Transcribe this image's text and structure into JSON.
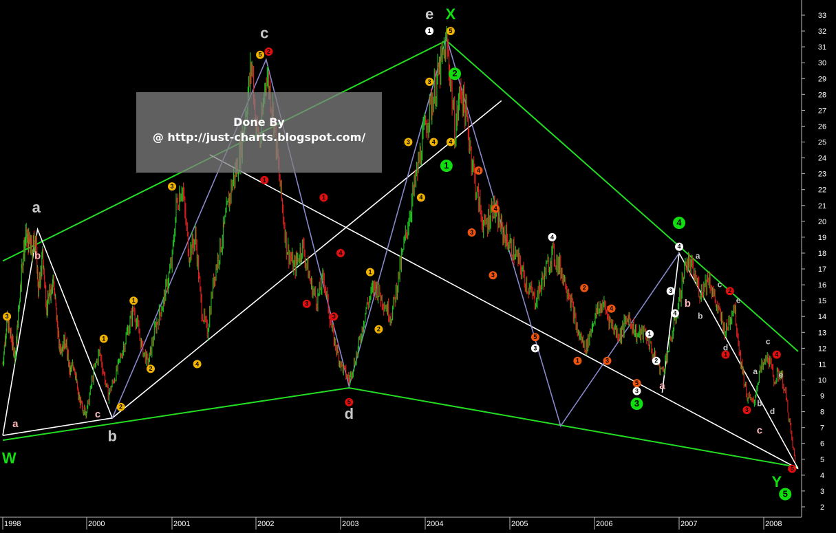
{
  "watermark": {
    "line1": "Done By",
    "line2": "@ http://just-charts.blogspot.com/"
  },
  "colors": {
    "background": "#000000",
    "up_bar": "#22c322",
    "down_bar": "#e02020",
    "trendline": "#22dd22",
    "white_line": "#ffffff",
    "blue_line": "#8888cc",
    "axis_text": "#ffffff",
    "marker_yellow": "#f0b400",
    "marker_red": "#e01010",
    "marker_orange": "#ee5511",
    "marker_white": "#ffffff",
    "marker_green": "#11dd11",
    "label_grey": "#c8c8c8",
    "label_pink": "#ffbbbb"
  },
  "chart_data": {
    "type": "line",
    "xlabel": "",
    "ylabel": "",
    "x_ticks": [
      "1998",
      "2000",
      "2001",
      "2002",
      "2003",
      "2004",
      "2005",
      "2006",
      "2007",
      "2008"
    ],
    "y_ticks": [
      2,
      3,
      4,
      5,
      6,
      7,
      8,
      9,
      10,
      11,
      12,
      13,
      14,
      15,
      16,
      17,
      18,
      19,
      20,
      21,
      22,
      23,
      24,
      25,
      26,
      27,
      28,
      29,
      30,
      31,
      32,
      33
    ],
    "xlim": [
      1998.0,
      2008.4
    ],
    "ylim": [
      1.5,
      34.0
    ],
    "grid": false,
    "legend": "none",
    "series": [
      {
        "values": [
          [
            1998.0,
            11.0
          ],
          [
            1998.1,
            13.8
          ],
          [
            1998.3,
            11.5
          ],
          [
            1998.45,
            17.0
          ],
          [
            1998.55,
            19.0
          ],
          [
            1998.7,
            18.2
          ],
          [
            1998.78,
            19.2
          ],
          [
            1998.85,
            15.5
          ],
          [
            1998.95,
            17.8
          ],
          [
            1999.05,
            14.5
          ],
          [
            1999.2,
            16.5
          ],
          [
            1999.35,
            12.0
          ],
          [
            1999.5,
            12.5
          ],
          [
            1999.6,
            10.5
          ],
          [
            1999.7,
            11.0
          ],
          [
            1999.8,
            9.0
          ],
          [
            1999.9,
            8.2
          ],
          [
            2000.0,
            8.0
          ],
          [
            2000.08,
            10.5
          ],
          [
            2000.15,
            11.8
          ],
          [
            2000.25,
            9.0
          ],
          [
            2000.35,
            10.5
          ],
          [
            2000.45,
            12.5
          ],
          [
            2000.55,
            14.5
          ],
          [
            2000.65,
            12.0
          ],
          [
            2000.72,
            11.0
          ],
          [
            2000.8,
            13.2
          ],
          [
            2000.9,
            15.0
          ],
          [
            2001.0,
            17.5
          ],
          [
            2001.05,
            21.0
          ],
          [
            2001.12,
            22.3
          ],
          [
            2001.2,
            18.0
          ],
          [
            2001.28,
            19.0
          ],
          [
            2001.35,
            14.5
          ],
          [
            2001.42,
            13.0
          ],
          [
            2001.5,
            16.5
          ],
          [
            2001.6,
            19.0
          ],
          [
            2001.7,
            22.0
          ],
          [
            2001.8,
            24.0
          ],
          [
            2001.88,
            27.0
          ],
          [
            2001.95,
            30.0
          ],
          [
            2002.0,
            26.0
          ],
          [
            2002.05,
            25.0
          ],
          [
            2002.12,
            29.5
          ],
          [
            2002.2,
            27.0
          ],
          [
            2002.28,
            22.5
          ],
          [
            2002.36,
            18.5
          ],
          [
            2002.45,
            17.0
          ],
          [
            2002.55,
            18.5
          ],
          [
            2002.65,
            16.0
          ],
          [
            2002.72,
            15.0
          ],
          [
            2002.8,
            16.5
          ],
          [
            2002.9,
            13.0
          ],
          [
            2003.0,
            11.0
          ],
          [
            2003.1,
            10.0
          ],
          [
            2003.2,
            11.8
          ],
          [
            2003.3,
            14.5
          ],
          [
            2003.4,
            16.0
          ],
          [
            2003.5,
            15.0
          ],
          [
            2003.6,
            14.0
          ],
          [
            2003.7,
            17.0
          ],
          [
            2003.8,
            20.0
          ],
          [
            2003.9,
            23.0
          ],
          [
            2004.0,
            26.0
          ],
          [
            2004.1,
            28.0
          ],
          [
            2004.17,
            29.5
          ],
          [
            2004.25,
            31.2
          ],
          [
            2004.3,
            29.0
          ],
          [
            2004.35,
            25.5
          ],
          [
            2004.42,
            28.5
          ],
          [
            2004.5,
            26.0
          ],
          [
            2004.6,
            22.0
          ],
          [
            2004.7,
            19.5
          ],
          [
            2004.8,
            21.0
          ],
          [
            2004.9,
            19.5
          ],
          [
            2005.0,
            18.5
          ],
          [
            2005.1,
            17.5
          ],
          [
            2005.2,
            16.0
          ],
          [
            2005.3,
            15.0
          ],
          [
            2005.4,
            16.5
          ],
          [
            2005.5,
            18.0
          ],
          [
            2005.6,
            17.0
          ],
          [
            2005.7,
            15.5
          ],
          [
            2005.8,
            13.0
          ],
          [
            2005.9,
            12.0
          ],
          [
            2006.0,
            14.0
          ],
          [
            2006.1,
            14.8
          ],
          [
            2006.2,
            13.5
          ],
          [
            2006.3,
            12.8
          ],
          [
            2006.4,
            14.0
          ],
          [
            2006.5,
            12.8
          ],
          [
            2006.6,
            13.0
          ],
          [
            2006.7,
            11.5
          ],
          [
            2006.8,
            10.5
          ],
          [
            2006.9,
            12.5
          ],
          [
            2007.0,
            15.0
          ],
          [
            2007.08,
            17.5
          ],
          [
            2007.15,
            17.0
          ],
          [
            2007.25,
            15.5
          ],
          [
            2007.35,
            16.5
          ],
          [
            2007.45,
            14.5
          ],
          [
            2007.55,
            13.0
          ],
          [
            2007.65,
            14.8
          ],
          [
            2007.72,
            11.5
          ],
          [
            2007.8,
            9.0
          ],
          [
            2007.88,
            8.5
          ],
          [
            2007.95,
            10.5
          ],
          [
            2008.05,
            11.5
          ],
          [
            2008.12,
            10.0
          ],
          [
            2008.2,
            10.5
          ],
          [
            2008.27,
            8.5
          ],
          [
            2008.32,
            6.5
          ],
          [
            2008.37,
            4.6
          ]
        ]
      }
    ],
    "trendlines": [
      {
        "color": "green",
        "points": [
          [
            1998.0,
            17.5
          ],
          [
            2004.25,
            31.4
          ],
          [
            2008.4,
            11.8
          ]
        ]
      },
      {
        "color": "green",
        "points": [
          [
            1998.0,
            6.2
          ],
          [
            2003.1,
            9.5
          ],
          [
            2008.4,
            4.5
          ]
        ]
      },
      {
        "color": "white",
        "points": [
          [
            1998.0,
            6.5
          ],
          [
            1998.83,
            19.5
          ],
          [
            2000.3,
            7.6
          ],
          [
            2004.9,
            27.6
          ]
        ]
      },
      {
        "color": "white",
        "points": [
          [
            1998.0,
            6.5
          ],
          [
            2000.3,
            7.6
          ]
        ]
      },
      {
        "color": "white",
        "points": [
          [
            2001.45,
            24.2
          ],
          [
            2008.4,
            4.4
          ]
        ]
      },
      {
        "color": "white",
        "points": [
          [
            2006.8,
            9.2
          ],
          [
            2007.0,
            18.0
          ],
          [
            2008.4,
            4.4
          ]
        ]
      },
      {
        "color": "blue",
        "points": [
          [
            2000.3,
            7.6
          ],
          [
            2002.12,
            30.2
          ],
          [
            2003.1,
            9.6
          ],
          [
            2004.25,
            31.6
          ],
          [
            2005.6,
            7.1
          ],
          [
            2007.0,
            18.0
          ]
        ]
      }
    ],
    "annotations": [
      {
        "text": "e",
        "x": 2004.05,
        "y": 33.0,
        "color": "grey",
        "size": "large"
      },
      {
        "text": "X",
        "x": 2004.3,
        "y": 33.0,
        "color": "green",
        "size": "large"
      },
      {
        "text": "c",
        "x": 2002.1,
        "y": 31.8,
        "color": "grey",
        "size": "large"
      },
      {
        "text": "a",
        "x": 1998.8,
        "y": 20.8,
        "color": "grey",
        "size": "large"
      },
      {
        "text": "b",
        "x": 1998.83,
        "y": 17.8,
        "color": "pink",
        "size": "medium"
      },
      {
        "text": "c",
        "x": 2000.13,
        "y": 7.8,
        "color": "pink",
        "size": "medium"
      },
      {
        "text": "b",
        "x": 2000.3,
        "y": 6.4,
        "color": "grey",
        "size": "large"
      },
      {
        "text": "a",
        "x": 1998.3,
        "y": 7.2,
        "color": "pink",
        "size": "medium"
      },
      {
        "text": "W",
        "x": 1998.15,
        "y": 5.0,
        "color": "green",
        "size": "large"
      },
      {
        "text": "d",
        "x": 2003.1,
        "y": 7.8,
        "color": "grey",
        "size": "large"
      },
      {
        "text": "Y",
        "x": 2008.15,
        "y": 3.5,
        "color": "green",
        "size": "large"
      },
      {
        "text": "a",
        "x": 2006.8,
        "y": 9.6,
        "color": "pink",
        "size": "medium"
      },
      {
        "text": "b",
        "x": 2007.1,
        "y": 14.8,
        "color": "pink",
        "size": "medium"
      },
      {
        "text": "b",
        "x": 2007.25,
        "y": 14.0,
        "color": "grey",
        "size": "small"
      },
      {
        "text": "a",
        "x": 2007.22,
        "y": 17.8,
        "color": "grey",
        "size": "small"
      },
      {
        "text": "c",
        "x": 2007.48,
        "y": 16.0,
        "color": "grey",
        "size": "small"
      },
      {
        "text": "d",
        "x": 2007.55,
        "y": 12.0,
        "color": "grey",
        "size": "small"
      },
      {
        "text": "e",
        "x": 2007.7,
        "y": 15.0,
        "color": "grey",
        "size": "small"
      },
      {
        "text": "c",
        "x": 2007.95,
        "y": 6.8,
        "color": "pink",
        "size": "medium"
      },
      {
        "text": "a",
        "x": 2007.9,
        "y": 10.5,
        "color": "grey",
        "size": "small"
      },
      {
        "text": "b",
        "x": 2007.95,
        "y": 8.5,
        "color": "grey",
        "size": "small"
      },
      {
        "text": "c",
        "x": 2008.05,
        "y": 12.4,
        "color": "grey",
        "size": "small"
      },
      {
        "text": "d",
        "x": 2008.1,
        "y": 8.0,
        "color": "grey",
        "size": "small"
      },
      {
        "text": "e",
        "x": 2008.2,
        "y": 10.3,
        "color": "grey",
        "size": "small"
      }
    ],
    "wave_markers": [
      {
        "label": "5",
        "x": 2002.05,
        "y": 30.5,
        "color": "yellow"
      },
      {
        "label": "2",
        "x": 2002.15,
        "y": 30.7,
        "color": "red"
      },
      {
        "label": "1",
        "x": 2004.05,
        "y": 32.0,
        "color": "white"
      },
      {
        "label": "5",
        "x": 2004.3,
        "y": 32.0,
        "color": "yellow"
      },
      {
        "label": "3",
        "x": 1998.1,
        "y": 14.0,
        "color": "yellow"
      },
      {
        "label": "3",
        "x": 2001.0,
        "y": 22.2,
        "color": "yellow"
      },
      {
        "label": "1",
        "x": 2002.1,
        "y": 22.6,
        "color": "red"
      },
      {
        "label": "3",
        "x": 2003.8,
        "y": 25.0,
        "color": "yellow"
      },
      {
        "label": "3",
        "x": 2004.05,
        "y": 28.8,
        "color": "yellow"
      },
      {
        "label": "4",
        "x": 2004.1,
        "y": 25.0,
        "color": "yellow"
      },
      {
        "label": "4",
        "x": 2004.3,
        "y": 25.0,
        "color": "yellow"
      },
      {
        "label": "1",
        "x": 2000.2,
        "y": 12.6,
        "color": "yellow"
      },
      {
        "label": "2",
        "x": 2000.4,
        "y": 8.3,
        "color": "yellow"
      },
      {
        "label": "1",
        "x": 2000.55,
        "y": 15.0,
        "color": "yellow"
      },
      {
        "label": "2",
        "x": 2000.75,
        "y": 10.7,
        "color": "yellow"
      },
      {
        "label": "4",
        "x": 2001.3,
        "y": 11.0,
        "color": "yellow"
      },
      {
        "label": "1",
        "x": 2003.35,
        "y": 16.8,
        "color": "yellow"
      },
      {
        "label": "2",
        "x": 2003.45,
        "y": 13.2,
        "color": "yellow"
      },
      {
        "label": "4",
        "x": 2003.95,
        "y": 21.5,
        "color": "yellow"
      },
      {
        "label": "1",
        "x": 2002.8,
        "y": 21.5,
        "color": "red"
      },
      {
        "label": "3",
        "x": 2002.6,
        "y": 14.8,
        "color": "red"
      },
      {
        "label": "3",
        "x": 2002.92,
        "y": 14.0,
        "color": "red"
      },
      {
        "label": "4",
        "x": 2003.0,
        "y": 18.0,
        "color": "red"
      },
      {
        "label": "5",
        "x": 2003.1,
        "y": 8.6,
        "color": "red"
      },
      {
        "label": "2",
        "x": 2004.35,
        "y": 29.3,
        "color": "green",
        "big": true
      },
      {
        "label": "1",
        "x": 2004.25,
        "y": 23.5,
        "color": "green",
        "big": true
      },
      {
        "label": "4",
        "x": 2004.63,
        "y": 23.2,
        "color": "orange"
      },
      {
        "label": "3",
        "x": 2004.55,
        "y": 19.3,
        "color": "orange"
      },
      {
        "label": "4",
        "x": 2004.83,
        "y": 20.8,
        "color": "orange"
      },
      {
        "label": "3",
        "x": 2004.8,
        "y": 16.6,
        "color": "orange"
      },
      {
        "label": "4",
        "x": 2005.5,
        "y": 19.0,
        "color": "white"
      },
      {
        "label": "5",
        "x": 2005.3,
        "y": 12.7,
        "color": "orange"
      },
      {
        "label": "3",
        "x": 2005.3,
        "y": 12.0,
        "color": "white"
      },
      {
        "label": "2",
        "x": 2005.88,
        "y": 15.8,
        "color": "orange"
      },
      {
        "label": "1",
        "x": 2005.8,
        "y": 11.2,
        "color": "orange"
      },
      {
        "label": "4",
        "x": 2006.2,
        "y": 14.5,
        "color": "orange"
      },
      {
        "label": "3",
        "x": 2006.15,
        "y": 11.2,
        "color": "orange"
      },
      {
        "label": "5",
        "x": 2006.5,
        "y": 9.8,
        "color": "orange"
      },
      {
        "label": "3",
        "x": 2006.5,
        "y": 9.3,
        "color": "white"
      },
      {
        "label": "3",
        "x": 2006.5,
        "y": 8.5,
        "color": "green",
        "big": true
      },
      {
        "label": "1",
        "x": 2006.65,
        "y": 12.9,
        "color": "white"
      },
      {
        "label": "2",
        "x": 2006.73,
        "y": 11.2,
        "color": "white"
      },
      {
        "label": "3",
        "x": 2006.9,
        "y": 15.6,
        "color": "white"
      },
      {
        "label": "4",
        "x": 2006.95,
        "y": 14.2,
        "color": "white"
      },
      {
        "label": "4",
        "x": 2007.0,
        "y": 18.4,
        "color": "white"
      },
      {
        "label": "4",
        "x": 2007.0,
        "y": 19.9,
        "color": "green",
        "big": true
      },
      {
        "label": "2",
        "x": 2007.6,
        "y": 15.6,
        "color": "red"
      },
      {
        "label": "1",
        "x": 2007.55,
        "y": 11.6,
        "color": "red"
      },
      {
        "label": "3",
        "x": 2007.8,
        "y": 8.1,
        "color": "red"
      },
      {
        "label": "4",
        "x": 2008.15,
        "y": 11.6,
        "color": "red"
      },
      {
        "label": "5",
        "x": 2008.33,
        "y": 4.4,
        "color": "red"
      },
      {
        "label": "5",
        "x": 2008.25,
        "y": 2.8,
        "color": "green",
        "big": true
      }
    ]
  }
}
